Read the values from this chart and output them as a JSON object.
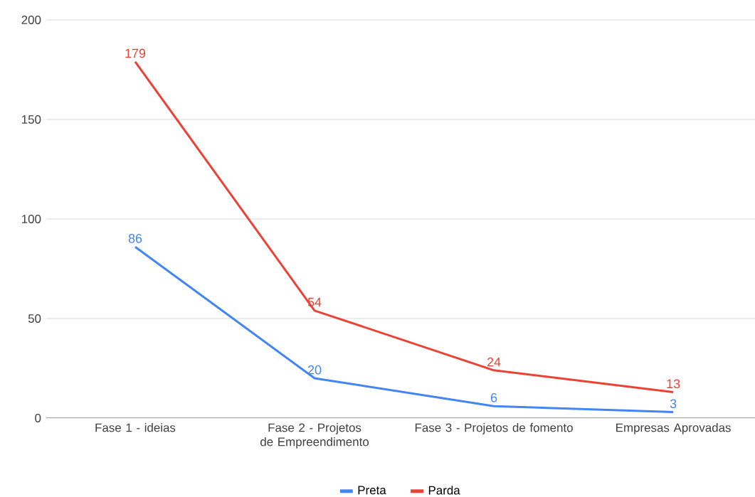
{
  "chart_data": {
    "type": "line",
    "categories": [
      "Fase 1 - ideias",
      "Fase 2 - Projetos de Empreendimento",
      "Fase 3 - Projetos de fomento",
      "Empresas Aprovadas"
    ],
    "series": [
      {
        "name": "Preta",
        "color": "#4285f4",
        "values": [
          86,
          20,
          6,
          3
        ]
      },
      {
        "name": "Parda",
        "color": "#ea4335",
        "values": [
          179,
          54,
          24,
          13
        ]
      }
    ],
    "ylim": [
      0,
      200
    ],
    "yticks": [
      0,
      50,
      100,
      150,
      200
    ],
    "grid": "y",
    "legend": "bottom",
    "data_labels": true,
    "marker": "none",
    "line_style": "solid"
  }
}
